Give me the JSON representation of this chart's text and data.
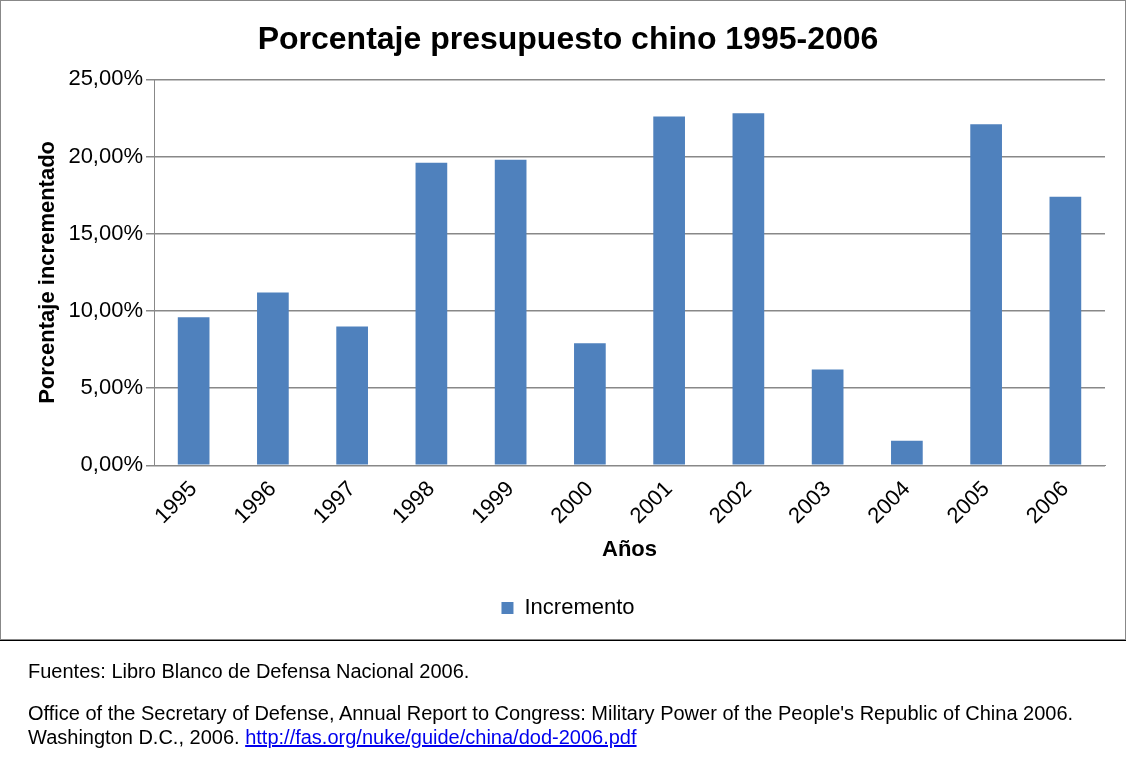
{
  "chart_data": {
    "type": "bar",
    "title": "Porcentaje presupuesto chino 1995-2006",
    "xlabel": "Años",
    "ylabel": "Porcentaje incrementado",
    "categories": [
      "1995",
      "1996",
      "1997",
      "1998",
      "1999",
      "2000",
      "2001",
      "2002",
      "2003",
      "2004",
      "2005",
      "2006"
    ],
    "series": [
      {
        "name": "Incremento",
        "color": "#4f81bd",
        "values": [
          9.6,
          11.2,
          9.0,
          19.6,
          19.8,
          7.9,
          22.6,
          22.8,
          6.2,
          1.6,
          22.1,
          17.4
        ]
      }
    ],
    "ylim": [
      0,
      25
    ],
    "yticks": [
      {
        "value": 0,
        "label": "0,00%"
      },
      {
        "value": 5,
        "label": "5,00%"
      },
      {
        "value": 10,
        "label": "10,00%"
      },
      {
        "value": 15,
        "label": "15,00%"
      },
      {
        "value": 20,
        "label": "20,00%"
      },
      {
        "value": 25,
        "label": "25,00%"
      }
    ],
    "grid": "y",
    "legend": "bottom",
    "annotations": [
      "Fuentes: Libro Blanco de Defensa Nacional 2006.",
      "Office of the Secretary of Defense, Annual Report to Congress: Military Power of the People's Republic of China 2006. Washington D.C., 2006.",
      "http://fas.org/nuke/guide/china/dod-2006.pdf"
    ]
  }
}
